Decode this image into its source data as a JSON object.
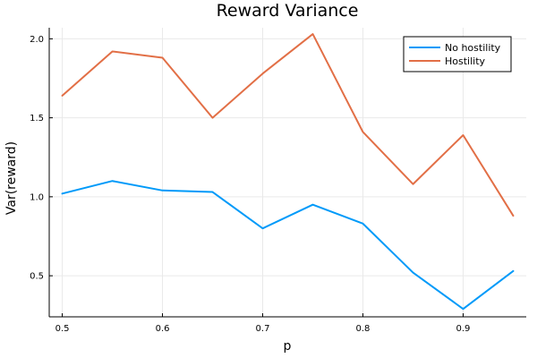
{
  "chart_data": {
    "type": "line",
    "title": "Reward Variance",
    "xlabel": "p",
    "ylabel": "Var(reward)",
    "x": [
      0.5,
      0.55,
      0.6,
      0.65,
      0.7,
      0.75,
      0.8,
      0.85,
      0.9,
      0.95
    ],
    "xlim": [
      0.487,
      0.963
    ],
    "ylim": [
      0.24,
      2.07
    ],
    "xticks": [
      0.5,
      0.6,
      0.7,
      0.8,
      0.9
    ],
    "xtick_labels": [
      "0.5",
      "0.6",
      "0.7",
      "0.8",
      "0.9"
    ],
    "yticks": [
      0.5,
      1.0,
      1.5,
      2.0
    ],
    "ytick_labels": [
      "0.5",
      "1.0",
      "1.5",
      "2.0"
    ],
    "grid": true,
    "legend_position": "top-right",
    "series": [
      {
        "name": "No hostility",
        "color": "#009af9",
        "values": [
          1.02,
          1.1,
          1.04,
          1.03,
          0.8,
          0.95,
          0.83,
          0.52,
          0.29,
          0.53
        ]
      },
      {
        "name": "Hostility",
        "color": "#e26f46",
        "values": [
          1.64,
          1.92,
          1.88,
          1.5,
          1.78,
          2.03,
          1.41,
          1.08,
          1.39,
          0.88
        ]
      }
    ]
  }
}
